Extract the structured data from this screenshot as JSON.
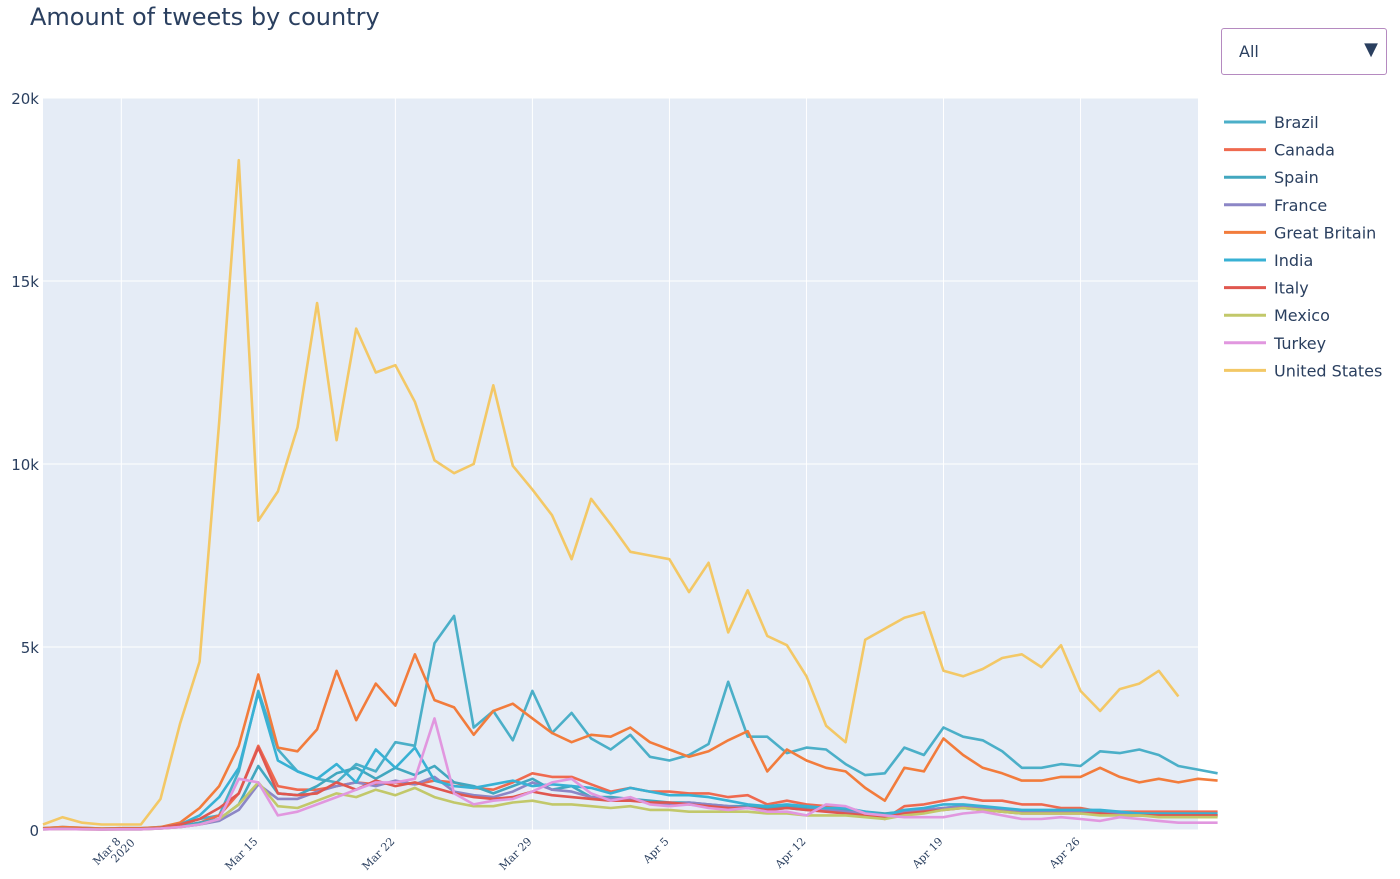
{
  "chart_data": {
    "type": "line",
    "title": "Amount of tweets by country",
    "xlabel": "",
    "ylabel": "",
    "x_start": "2020-03-04",
    "x_end": "2020-05-02",
    "xlim": [
      "2020-03-04",
      "2020-05-02"
    ],
    "ylim": [
      0,
      20000
    ],
    "y_ticks": [
      {
        "value": 0,
        "label": "0"
      },
      {
        "value": 5000,
        "label": "5k"
      },
      {
        "value": 10000,
        "label": "10k"
      },
      {
        "value": 15000,
        "label": "15k"
      },
      {
        "value": 20000,
        "label": "20k"
      }
    ],
    "x_ticks": [
      {
        "date": "2020-03-08",
        "label": "Mar 8",
        "sublabel": "2020"
      },
      {
        "date": "2020-03-15",
        "label": "Mar 15",
        "sublabel": ""
      },
      {
        "date": "2020-03-22",
        "label": "Mar 22",
        "sublabel": ""
      },
      {
        "date": "2020-03-29",
        "label": "Mar 29",
        "sublabel": ""
      },
      {
        "date": "2020-04-05",
        "label": "Apr 5",
        "sublabel": ""
      },
      {
        "date": "2020-04-12",
        "label": "Apr 12",
        "sublabel": ""
      },
      {
        "date": "2020-04-19",
        "label": "Apr 19",
        "sublabel": ""
      },
      {
        "date": "2020-04-26",
        "label": "Apr 26",
        "sublabel": ""
      }
    ],
    "grid": true,
    "legend_position": "right",
    "plot_background": "#e5ecf6",
    "series": [
      {
        "name": "Brazil",
        "color": "#4bafc8",
        "values": [
          50,
          80,
          60,
          40,
          50,
          50,
          80,
          150,
          300,
          400,
          1600,
          3800,
          2200,
          1600,
          1400,
          1300,
          1800,
          1600,
          2400,
          2300,
          5100,
          5850,
          2800,
          3250,
          2450,
          3800,
          2650,
          3200,
          2500,
          2200,
          2600,
          2000,
          1900,
          2050,
          2350,
          4050,
          2550,
          2550,
          2100,
          2250,
          2200,
          1800,
          1500,
          1550,
          2250,
          2050,
          2800,
          2550,
          2450,
          2150,
          1700,
          1700,
          1800,
          1750,
          2150,
          2100,
          2200,
          2050,
          1750,
          1650,
          1550
        ]
      },
      {
        "name": "Canada",
        "color": "#ef6a4f",
        "values": [
          30,
          50,
          40,
          30,
          40,
          40,
          60,
          100,
          200,
          400,
          1000,
          2300,
          1200,
          1100,
          1100,
          1200,
          1300,
          1250,
          1300,
          1250,
          1350,
          1300,
          1150,
          1100,
          1300,
          1550,
          1450,
          1450,
          1250,
          1050,
          1150,
          1050,
          1050,
          1000,
          1000,
          900,
          950,
          700,
          800,
          700,
          650,
          600,
          450,
          300,
          650,
          700,
          800,
          900,
          800,
          800,
          700,
          700,
          600,
          600,
          500,
          500,
          500,
          500,
          500,
          500,
          500
        ]
      },
      {
        "name": "Spain",
        "color": "#42a7bf",
        "values": [
          30,
          40,
          30,
          20,
          30,
          30,
          60,
          100,
          200,
          300,
          700,
          1750,
          1000,
          950,
          1200,
          1550,
          1700,
          1400,
          1700,
          1500,
          1750,
          1300,
          1200,
          1000,
          1200,
          1400,
          1100,
          1200,
          900,
          900,
          850,
          800,
          750,
          750,
          700,
          650,
          650,
          600,
          650,
          600,
          550,
          550,
          500,
          450,
          500,
          550,
          600,
          650,
          600,
          550,
          500,
          500,
          500,
          500,
          500,
          450,
          450,
          400,
          400,
          400,
          400
        ]
      },
      {
        "name": "France",
        "color": "#8c86c6",
        "values": [
          20,
          30,
          30,
          20,
          20,
          20,
          40,
          80,
          150,
          250,
          550,
          1250,
          850,
          850,
          1050,
          1200,
          1300,
          1200,
          1350,
          1250,
          1450,
          1050,
          950,
          900,
          1050,
          1300,
          1100,
          1050,
          900,
          850,
          850,
          750,
          700,
          750,
          700,
          650,
          600,
          550,
          600,
          550,
          550,
          500,
          450,
          400,
          500,
          550,
          600,
          650,
          600,
          550,
          500,
          500,
          500,
          500,
          450,
          450,
          450,
          400,
          400,
          400,
          400
        ]
      },
      {
        "name": "Great Britain",
        "color": "#f27c3c",
        "values": [
          50,
          80,
          60,
          40,
          50,
          50,
          80,
          200,
          600,
          1200,
          2300,
          4250,
          2250,
          2150,
          2750,
          4350,
          3000,
          4000,
          3400,
          4800,
          3550,
          3350,
          2600,
          3250,
          3450,
          3050,
          2650,
          2400,
          2600,
          2550,
          2800,
          2400,
          2200,
          2000,
          2150,
          2450,
          2700,
          1600,
          2200,
          1900,
          1700,
          1600,
          1150,
          800,
          1700,
          1600,
          2500,
          2050,
          1700,
          1550,
          1350,
          1350,
          1450,
          1450,
          1700,
          1450,
          1300,
          1400,
          1300,
          1400,
          1350
        ]
      },
      {
        "name": "India",
        "color": "#38b1d4",
        "values": [
          30,
          40,
          30,
          20,
          30,
          30,
          60,
          150,
          400,
          900,
          1700,
          3750,
          1900,
          1600,
          1400,
          1800,
          1300,
          2200,
          1700,
          2250,
          1350,
          1200,
          1150,
          1250,
          1350,
          1200,
          1250,
          1200,
          1150,
          1000,
          1150,
          1050,
          950,
          950,
          900,
          800,
          700,
          650,
          700,
          650,
          600,
          600,
          500,
          400,
          550,
          600,
          700,
          700,
          650,
          600,
          550,
          550,
          550,
          550,
          550,
          500,
          450,
          450,
          450,
          450,
          450
        ]
      },
      {
        "name": "Italy",
        "color": "#e0574f",
        "values": [
          30,
          40,
          30,
          20,
          30,
          30,
          60,
          150,
          300,
          600,
          1000,
          2250,
          1000,
          950,
          1000,
          1300,
          1100,
          1350,
          1200,
          1300,
          1150,
          1000,
          900,
          850,
          900,
          1050,
          950,
          900,
          850,
          800,
          800,
          750,
          750,
          700,
          650,
          600,
          600,
          550,
          600,
          550,
          500,
          450,
          400,
          350,
          450,
          500,
          550,
          600,
          550,
          500,
          450,
          450,
          450,
          450,
          450,
          400,
          400,
          400,
          400,
          400,
          400
        ]
      },
      {
        "name": "Mexico",
        "color": "#c2c86a",
        "values": [
          20,
          30,
          20,
          10,
          20,
          20,
          40,
          80,
          150,
          300,
          700,
          1300,
          650,
          600,
          800,
          1000,
          900,
          1100,
          950,
          1150,
          900,
          750,
          650,
          650,
          750,
          800,
          700,
          700,
          650,
          600,
          650,
          550,
          550,
          500,
          500,
          500,
          500,
          450,
          450,
          400,
          400,
          400,
          350,
          300,
          400,
          450,
          550,
          600,
          550,
          500,
          450,
          450,
          450,
          450,
          400,
          400,
          400,
          350,
          350,
          350,
          350
        ]
      },
      {
        "name": "Turkey",
        "color": "#e197df",
        "values": [
          20,
          30,
          20,
          10,
          20,
          20,
          40,
          80,
          150,
          300,
          1400,
          1300,
          400,
          500,
          700,
          900,
          1100,
          1300,
          1300,
          1400,
          3050,
          1000,
          700,
          800,
          850,
          1050,
          1300,
          1400,
          1000,
          800,
          900,
          700,
          650,
          700,
          600,
          550,
          600,
          500,
          500,
          400,
          700,
          650,
          450,
          400,
          350,
          350,
          350,
          450,
          500,
          400,
          300,
          300,
          350,
          300,
          250,
          350,
          300,
          250,
          200,
          200,
          200
        ]
      },
      {
        "name": "United States",
        "color": "#f3c866",
        "values": [
          150,
          350,
          200,
          150,
          150,
          150,
          850,
          2900,
          4600,
          11150,
          18300,
          8450,
          9250,
          11000,
          14400,
          10650,
          13700,
          12500,
          12700,
          11700,
          10100,
          9750,
          10000,
          12150,
          9950,
          9300,
          8600,
          7400,
          9050,
          8350,
          7600,
          7500,
          7400,
          6500,
          7300,
          5400,
          6550,
          5300,
          5050,
          4200,
          2850,
          2400,
          5200,
          5500,
          5800,
          5950,
          4350,
          4200,
          4400,
          4700,
          4800,
          4450,
          5050,
          3800,
          3250,
          3850,
          4000,
          4350,
          3650,
          null,
          null
        ]
      }
    ]
  },
  "dropdown": {
    "value": "All",
    "arrow": "▼"
  }
}
